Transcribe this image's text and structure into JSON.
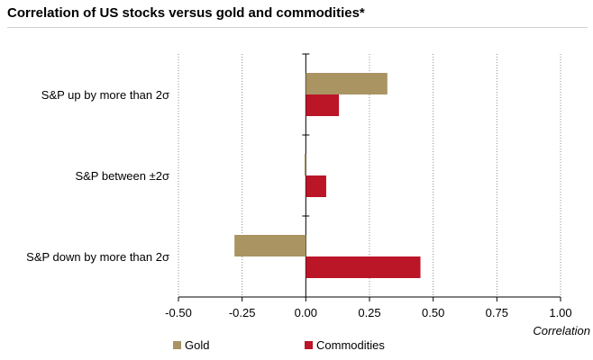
{
  "chart_data": {
    "type": "bar",
    "orientation": "horizontal",
    "title": "Correlation of US stocks versus gold and commodities*",
    "xlabel": "Correlation",
    "xlim": [
      -0.5,
      1.0
    ],
    "xticks": [
      "-0.50",
      "-0.25",
      "0.00",
      "0.25",
      "0.50",
      "0.75",
      "1.00"
    ],
    "grid": "vertical dotted",
    "legend_position": "bottom",
    "categories": [
      "S&P up by more than 2σ",
      "S&P between ±2σ",
      "S&P down by more than 2σ"
    ],
    "series": [
      {
        "name": "Gold",
        "color": "#a99462",
        "values": [
          0.32,
          -0.005,
          -0.28
        ]
      },
      {
        "name": "Commodities",
        "color": "#bb1528",
        "values": [
          0.13,
          0.08,
          0.45
        ]
      }
    ]
  }
}
